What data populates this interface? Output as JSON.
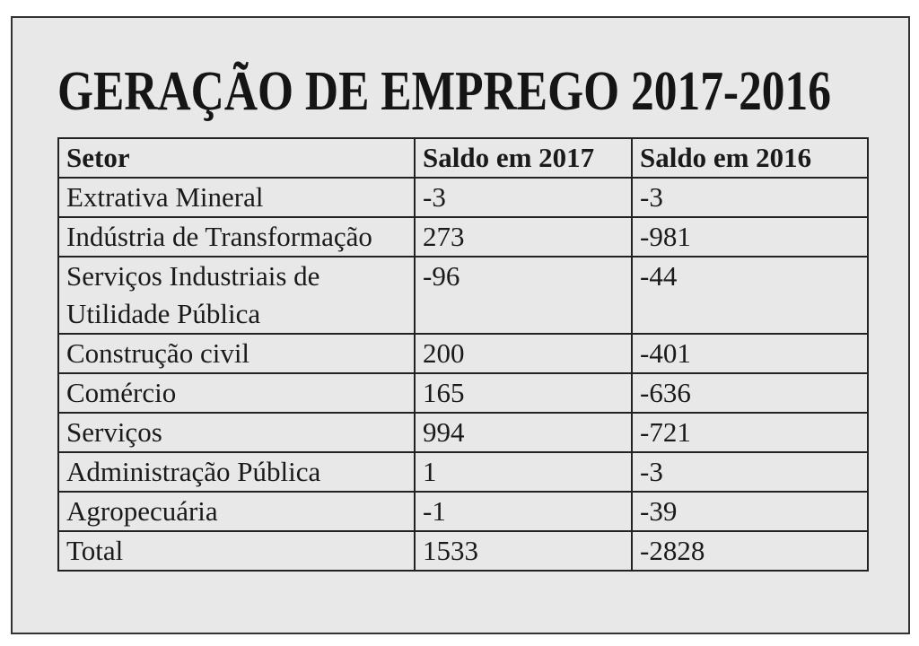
{
  "title": "GERAÇÃO DE EMPREGO 2017-2016",
  "table": {
    "header": [
      "Setor",
      "Saldo em 2017",
      "Saldo em 2016"
    ],
    "rows": [
      [
        "Extrativa Mineral",
        -3,
        -3
      ],
      [
        "Indústria de Transformação",
        273,
        -981
      ],
      [
        "Serviços Industriais de Utilidade Pública",
        -96,
        -44
      ],
      [
        "Construção civil",
        200,
        -401
      ],
      [
        "Comércio",
        165,
        -636
      ],
      [
        "Serviços",
        994,
        -721
      ],
      [
        "Administração Pública",
        1,
        -3
      ],
      [
        "Agropecuária",
        -1,
        -39
      ],
      [
        "Total",
        1533,
        -2828
      ]
    ]
  }
}
